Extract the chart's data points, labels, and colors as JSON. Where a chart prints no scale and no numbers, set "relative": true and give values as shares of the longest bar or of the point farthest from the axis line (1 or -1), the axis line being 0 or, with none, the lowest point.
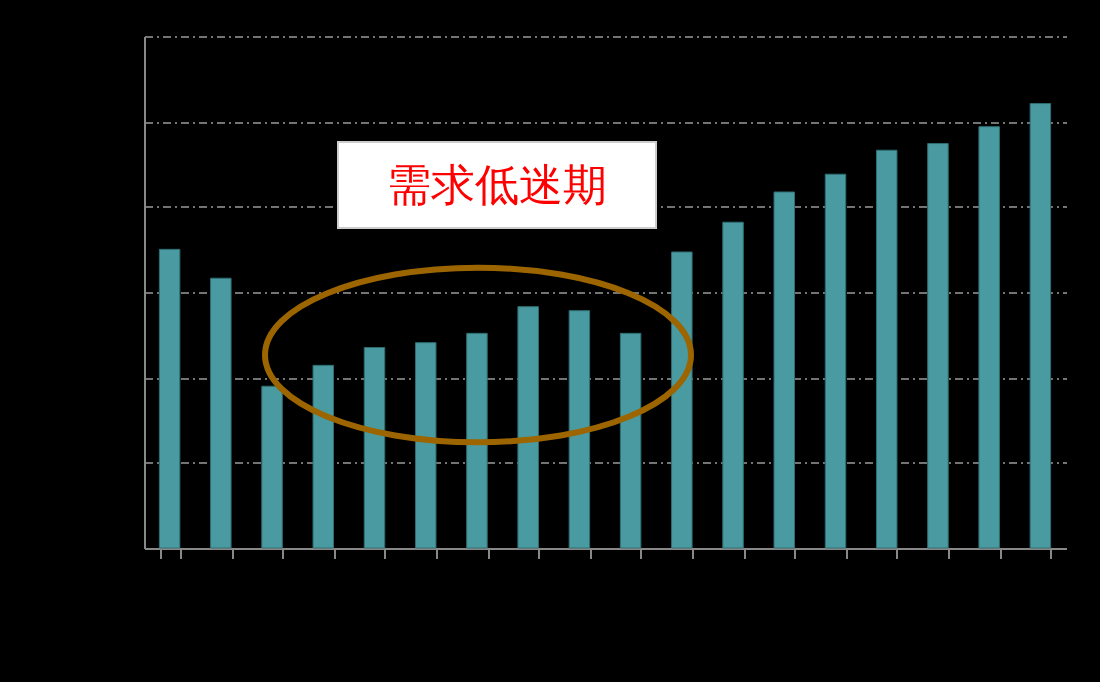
{
  "chart_data": {
    "type": "bar",
    "relative": true,
    "grid": "y",
    "color": "#4a9ba1",
    "categories": [
      null,
      null,
      null,
      null,
      null,
      null,
      null,
      null,
      null,
      null,
      null,
      null,
      null,
      null,
      null,
      null,
      null,
      null
    ],
    "values": [
      0.672,
      0.607,
      0.364,
      0.411,
      0.451,
      0.462,
      0.483,
      0.543,
      0.534,
      0.483,
      0.666,
      0.733,
      0.801,
      0.841,
      0.895,
      0.91,
      0.948,
      1
    ],
    "annotations": [
      "需求低迷期"
    ]
  }
}
